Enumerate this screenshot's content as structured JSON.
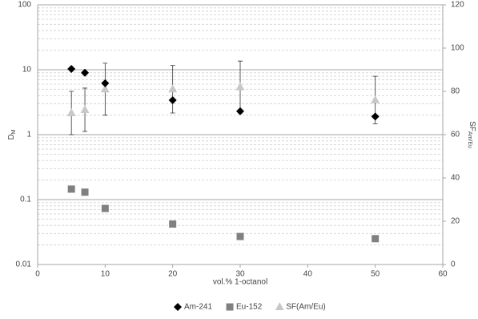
{
  "chart_data": {
    "type": "scatter",
    "x_label": "vol.% 1-octanol",
    "y_label": "D",
    "y_label_sub": "M",
    "y2_label": "SF",
    "y2_label_sub": "Am/Eu",
    "xlim": [
      0,
      60
    ],
    "xticks": [
      0,
      10,
      20,
      30,
      40,
      50,
      60
    ],
    "ylim": [
      0.01,
      100
    ],
    "yticks": [
      0.01,
      0.1,
      1,
      10,
      100
    ],
    "log_y": true,
    "y2lim": [
      0,
      120
    ],
    "y2ticks": [
      0,
      20,
      40,
      60,
      80,
      100,
      120
    ],
    "grid": true,
    "minor_grid": true,
    "legend": "bottom",
    "series": [
      {
        "name": "Am-241",
        "color": "#000000",
        "marker": "diamond",
        "x": [
          5,
          7,
          10,
          20,
          30,
          50
        ],
        "values": [
          10.3,
          9.0,
          6.2,
          3.4,
          2.3,
          1.9
        ]
      },
      {
        "name": "Eu-152",
        "color": "#808080",
        "marker": "square",
        "x": [
          5,
          7,
          10,
          20,
          30,
          50
        ],
        "values": [
          0.145,
          0.13,
          0.073,
          0.042,
          0.027,
          0.025
        ]
      },
      {
        "name": "SF(Am/Eu)",
        "color": "#c8c8c8",
        "marker": "triangle",
        "axis": "y2",
        "x": [
          5,
          7,
          10,
          20,
          30,
          50
        ],
        "values": [
          70,
          71.5,
          81,
          81,
          82,
          76
        ],
        "errors": [
          10,
          10,
          12,
          11,
          12,
          11
        ]
      }
    ]
  }
}
